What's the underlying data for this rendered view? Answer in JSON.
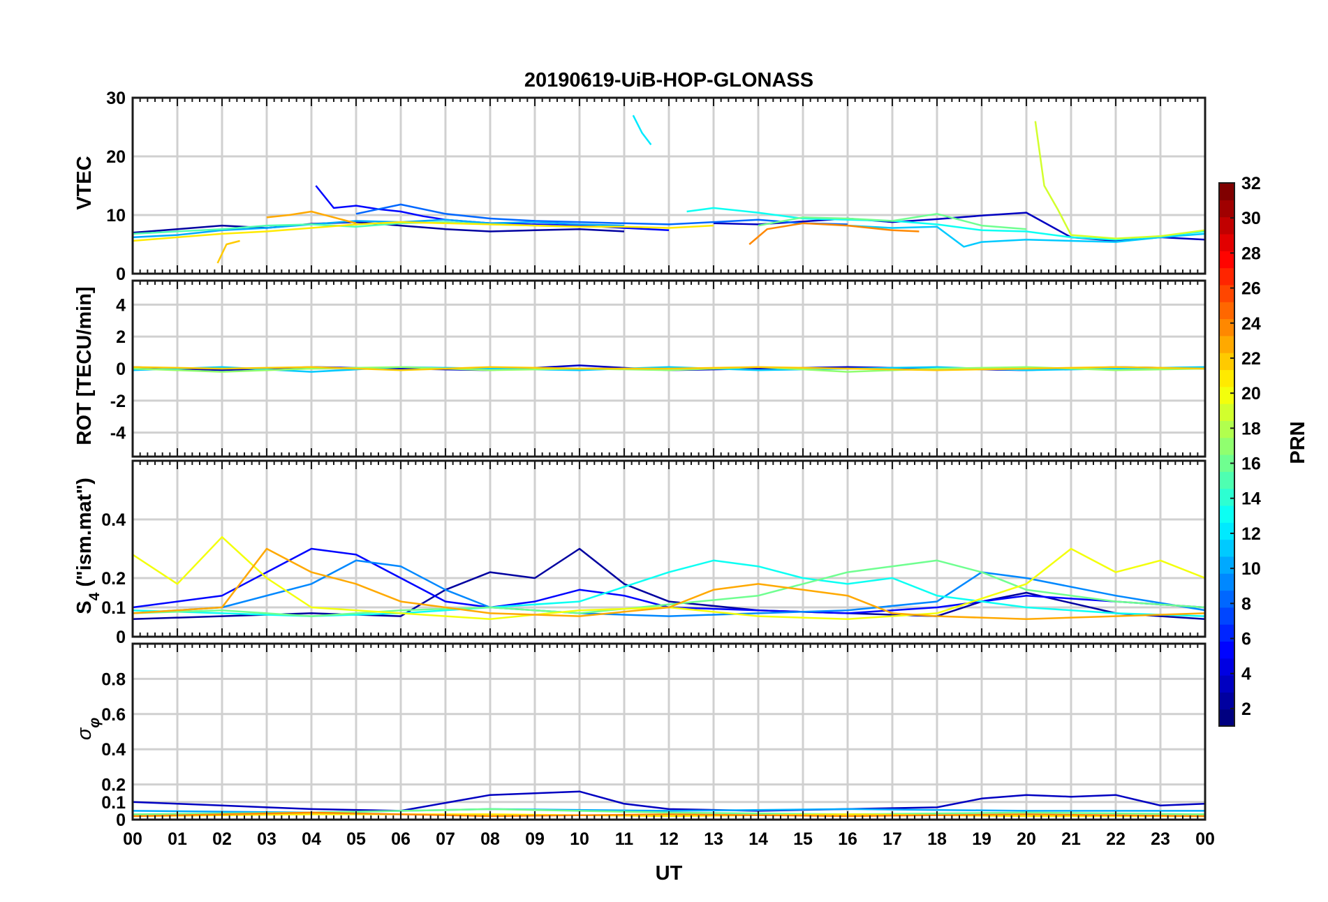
{
  "chart_data": {
    "type": "line",
    "title": "20190619-UiB-HOP-GLONASS",
    "xlabel": "UT",
    "x_range_hours": [
      0,
      24
    ],
    "x_tick_labels": [
      "00",
      "01",
      "02",
      "03",
      "04",
      "05",
      "06",
      "07",
      "08",
      "09",
      "10",
      "11",
      "12",
      "13",
      "14",
      "15",
      "16",
      "17",
      "18",
      "19",
      "20",
      "21",
      "22",
      "23",
      "00"
    ],
    "colorbar": {
      "label": "PRN",
      "range": [
        1,
        32
      ],
      "tick_labels": [
        "2",
        "4",
        "6",
        "8",
        "10",
        "12",
        "14",
        "16",
        "18",
        "20",
        "22",
        "24",
        "26",
        "28",
        "30",
        "32"
      ],
      "colormap": "jet"
    },
    "panels": [
      {
        "name": "vtec",
        "ylabel": "VTEC",
        "ylim": [
          0,
          30
        ],
        "y_ticks": [
          0,
          10,
          20,
          30
        ],
        "y_tick_labels": [
          "0",
          "10",
          "20",
          "30"
        ],
        "series": [
          {
            "prn": 2,
            "x": [
              0,
              1,
              2,
              3,
              4,
              5,
              6,
              7,
              8,
              9,
              10,
              11
            ],
            "y": [
              7.0,
              7.6,
              8.2,
              7.8,
              8.5,
              8.8,
              8.2,
              7.6,
              7.2,
              7.4,
              7.6,
              7.2
            ]
          },
          {
            "prn": 3,
            "x": [
              13,
              14,
              15,
              16,
              17,
              18,
              19,
              20,
              21,
              22,
              23,
              24
            ],
            "y": [
              8.6,
              8.4,
              8.9,
              9.4,
              8.8,
              9.3,
              9.9,
              10.4,
              6.2,
              5.6,
              6.2,
              5.8
            ]
          },
          {
            "prn": 5,
            "x": [
              4.1,
              4.5,
              5,
              5.5,
              6,
              6.5,
              7,
              8,
              9,
              10,
              11,
              12
            ],
            "y": [
              15.0,
              11.2,
              11.6,
              11.0,
              10.6,
              9.8,
              9.2,
              8.6,
              8.4,
              8.2,
              7.8,
              7.4
            ]
          },
          {
            "prn": 8,
            "x": [
              5,
              6,
              7,
              8,
              9,
              10,
              11,
              12,
              13,
              14,
              15,
              16
            ],
            "y": [
              10.2,
              11.8,
              10.2,
              9.4,
              9.0,
              8.8,
              8.6,
              8.4,
              8.8,
              9.2,
              8.6,
              8.4
            ]
          },
          {
            "prn": 10,
            "x": [
              0,
              1,
              2,
              3,
              4,
              5,
              6,
              7,
              8,
              9,
              10,
              11
            ],
            "y": [
              6.2,
              6.6,
              7.4,
              7.8,
              8.4,
              9.0,
              8.8,
              9.2,
              8.6,
              8.8,
              8.4,
              8.2
            ]
          },
          {
            "prn": 11,
            "x": [
              16,
              17,
              18,
              18.6,
              19,
              20,
              21,
              22,
              23,
              24
            ],
            "y": [
              8.2,
              7.8,
              8.0,
              4.6,
              5.4,
              5.8,
              5.6,
              5.4,
              6.2,
              6.8
            ]
          },
          {
            "prn": 12,
            "x": [
              11.2,
              11.4,
              11.6
            ],
            "y": [
              27.0,
              24.0,
              22.0
            ]
          },
          {
            "prn": 13,
            "x": [
              12.4,
              13,
              14,
              15,
              16,
              17,
              18,
              19,
              20,
              21,
              22,
              23,
              24
            ],
            "y": [
              10.6,
              11.2,
              10.4,
              9.4,
              9.2,
              9.0,
              8.4,
              7.4,
              7.2,
              6.2,
              5.8,
              6.4,
              7.2
            ]
          },
          {
            "prn": 15,
            "x": [
              0,
              1,
              2,
              3,
              4,
              5,
              6,
              7,
              8,
              9,
              10
            ],
            "y": [
              6.8,
              7.2,
              7.6,
              8.2,
              8.4,
              8.0,
              8.6,
              8.8,
              8.4,
              8.2,
              8.0
            ]
          },
          {
            "prn": 16,
            "x": [
              14,
              15,
              16,
              17,
              18,
              19,
              20
            ],
            "y": [
              8.2,
              9.6,
              9.4,
              9.0,
              10.2,
              8.2,
              7.6
            ]
          },
          {
            "prn": 19,
            "x": [
              20.2,
              20.4,
              20.7,
              21,
              22,
              23,
              24
            ],
            "y": [
              26.0,
              15.0,
              11.0,
              6.6,
              6.0,
              6.4,
              7.4
            ]
          },
          {
            "prn": 21,
            "x": [
              0,
              1,
              2,
              3,
              4,
              5,
              6,
              7,
              8,
              9,
              10,
              11,
              12,
              13
            ],
            "y": [
              5.6,
              6.2,
              6.8,
              7.2,
              7.8,
              8.4,
              8.8,
              8.6,
              8.4,
              8.2,
              8.0,
              8.0,
              7.8,
              8.2
            ]
          },
          {
            "prn": 22,
            "x": [
              1.9,
              2.1,
              2.4
            ],
            "y": [
              1.8,
              5.0,
              5.6
            ]
          },
          {
            "prn": 23,
            "x": [
              3,
              3.5,
              4,
              4.4,
              5
            ],
            "y": [
              9.6,
              10.0,
              10.6,
              9.8,
              8.6
            ]
          },
          {
            "prn": 24,
            "x": [
              13.8,
              14.2,
              15,
              16,
              17,
              17.6
            ],
            "y": [
              5.0,
              7.6,
              8.6,
              8.2,
              7.4,
              7.2
            ]
          }
        ]
      },
      {
        "name": "rot",
        "ylabel": "ROT [TECU/min]",
        "ylim": [
          -5.5,
          5.5
        ],
        "y_ticks": [
          -4,
          -2,
          0,
          2,
          4
        ],
        "y_tick_labels": [
          "-4",
          "-2",
          "0",
          "2",
          "4"
        ],
        "series": [
          {
            "prn": 3,
            "x": [
              0,
              2,
              4,
              6,
              8,
              10,
              12,
              14,
              16,
              18,
              20,
              22,
              24
            ],
            "y": [
              0.1,
              -0.1,
              0.1,
              0.0,
              -0.1,
              0.2,
              -0.1,
              0.0,
              0.1,
              0.0,
              -0.1,
              0.1,
              0.0
            ]
          },
          {
            "prn": 11,
            "x": [
              0,
              2,
              4,
              6,
              8,
              10,
              12,
              14,
              16,
              18,
              20,
              22,
              24
            ],
            "y": [
              -0.1,
              0.1,
              -0.2,
              0.1,
              0.0,
              -0.1,
              0.1,
              -0.1,
              0.0,
              0.1,
              -0.1,
              0.0,
              0.1
            ]
          },
          {
            "prn": 17,
            "x": [
              0,
              2,
              4,
              6,
              8,
              10,
              12,
              14,
              16,
              18,
              20,
              22,
              24
            ],
            "y": [
              0.0,
              -0.2,
              0.0,
              0.1,
              -0.1,
              0.0,
              -0.1,
              0.1,
              -0.2,
              0.0,
              0.1,
              -0.1,
              0.0
            ]
          },
          {
            "prn": 22,
            "x": [
              0,
              2,
              4,
              6,
              8,
              10,
              12,
              14,
              16,
              18,
              20,
              22,
              24
            ],
            "y": [
              0.1,
              0.0,
              0.1,
              -0.1,
              0.1,
              0.0,
              0.0,
              0.1,
              0.0,
              -0.1,
              0.0,
              0.1,
              0.0
            ]
          }
        ]
      },
      {
        "name": "s4",
        "ylabel": "S4 (\"ism.mat\")",
        "ylabel_main": "S",
        "ylabel_sub": "4",
        "ylabel_rest": " (\"ism.mat\")",
        "ylim": [
          0,
          0.6
        ],
        "y_ticks": [
          0,
          0.1,
          0.2,
          0.4
        ],
        "y_tick_labels": [
          "0",
          "0.1",
          "0.2",
          "0.4"
        ],
        "series": [
          {
            "prn": 2,
            "x": [
              0,
              2,
              4,
              6,
              7,
              8,
              9,
              10,
              11,
              12,
              14,
              16,
              18,
              19,
              20,
              22,
              24
            ],
            "y": [
              0.06,
              0.07,
              0.08,
              0.07,
              0.16,
              0.22,
              0.2,
              0.3,
              0.18,
              0.12,
              0.09,
              0.08,
              0.07,
              0.12,
              0.15,
              0.08,
              0.06
            ]
          },
          {
            "prn": 5,
            "x": [
              0,
              2,
              3,
              4,
              5,
              6,
              7,
              8,
              9,
              10,
              11,
              12,
              14,
              16,
              18,
              20,
              22,
              24
            ],
            "y": [
              0.1,
              0.14,
              0.22,
              0.3,
              0.28,
              0.2,
              0.12,
              0.1,
              0.12,
              0.16,
              0.14,
              0.1,
              0.09,
              0.08,
              0.1,
              0.14,
              0.12,
              0.1
            ]
          },
          {
            "prn": 9,
            "x": [
              0,
              2,
              4,
              5,
              6,
              7,
              8,
              10,
              12,
              14,
              16,
              18,
              19,
              20,
              22,
              24
            ],
            "y": [
              0.08,
              0.1,
              0.18,
              0.26,
              0.24,
              0.16,
              0.1,
              0.08,
              0.07,
              0.08,
              0.09,
              0.12,
              0.22,
              0.2,
              0.14,
              0.09
            ]
          },
          {
            "prn": 13,
            "x": [
              0,
              2,
              4,
              6,
              8,
              10,
              12,
              13,
              14,
              15,
              16,
              17,
              18,
              20,
              22,
              24
            ],
            "y": [
              0.09,
              0.08,
              0.07,
              0.08,
              0.1,
              0.12,
              0.22,
              0.26,
              0.24,
              0.2,
              0.18,
              0.2,
              0.14,
              0.1,
              0.08,
              0.07
            ]
          },
          {
            "prn": 16,
            "x": [
              0,
              2,
              4,
              6,
              8,
              10,
              12,
              14,
              15,
              16,
              17,
              18,
              19,
              20,
              22,
              24
            ],
            "y": [
              0.08,
              0.09,
              0.07,
              0.09,
              0.1,
              0.08,
              0.11,
              0.14,
              0.18,
              0.22,
              0.24,
              0.26,
              0.22,
              0.16,
              0.12,
              0.1
            ]
          },
          {
            "prn": 20,
            "x": [
              0,
              1,
              2,
              3,
              4,
              6,
              8,
              10,
              12,
              14,
              16,
              18,
              20,
              21,
              22,
              23,
              24
            ],
            "y": [
              0.28,
              0.18,
              0.34,
              0.2,
              0.1,
              0.08,
              0.06,
              0.09,
              0.1,
              0.07,
              0.06,
              0.08,
              0.18,
              0.3,
              0.22,
              0.26,
              0.2
            ]
          },
          {
            "prn": 23,
            "x": [
              0,
              2,
              3,
              4,
              5,
              6,
              8,
              10,
              12,
              13,
              14,
              15,
              16,
              17,
              18,
              20,
              22,
              24
            ],
            "y": [
              0.08,
              0.1,
              0.3,
              0.22,
              0.18,
              0.12,
              0.08,
              0.07,
              0.1,
              0.16,
              0.18,
              0.16,
              0.14,
              0.08,
              0.07,
              0.06,
              0.07,
              0.08
            ]
          }
        ]
      },
      {
        "name": "sigma_phi",
        "ylabel": "σφ",
        "ylabel_main": "σ",
        "ylabel_sub": "φ",
        "ylim": [
          0,
          1
        ],
        "y_ticks": [
          0,
          0.1,
          0.2,
          0.4,
          0.6,
          0.8
        ],
        "y_tick_labels": [
          "0",
          "0.1",
          "0.2",
          "0.4",
          "0.6",
          "0.8"
        ],
        "series": [
          {
            "prn": 3,
            "x": [
              0,
              1,
              2,
              3,
              4,
              6,
              8,
              9,
              10,
              11,
              12,
              14,
              16,
              18,
              19,
              20,
              21,
              22,
              23,
              24
            ],
            "y": [
              0.1,
              0.09,
              0.08,
              0.07,
              0.06,
              0.05,
              0.14,
              0.15,
              0.16,
              0.09,
              0.06,
              0.05,
              0.06,
              0.07,
              0.12,
              0.14,
              0.13,
              0.14,
              0.08,
              0.09
            ]
          },
          {
            "prn": 10,
            "x": [
              0,
              4,
              8,
              12,
              16,
              20,
              24
            ],
            "y": [
              0.05,
              0.04,
              0.06,
              0.05,
              0.06,
              0.05,
              0.05
            ]
          },
          {
            "prn": 16,
            "x": [
              0,
              4,
              8,
              12,
              16,
              20,
              24
            ],
            "y": [
              0.03,
              0.04,
              0.06,
              0.04,
              0.03,
              0.04,
              0.03
            ]
          },
          {
            "prn": 21,
            "x": [
              0,
              4,
              8,
              12,
              16,
              20,
              24
            ],
            "y": [
              0.02,
              0.03,
              0.03,
              0.02,
              0.03,
              0.02,
              0.02
            ]
          },
          {
            "prn": 24,
            "x": [
              0,
              4,
              8,
              12,
              16,
              20,
              24
            ],
            "y": [
              0.02,
              0.04,
              0.02,
              0.03,
              0.02,
              0.03,
              0.02
            ]
          }
        ]
      }
    ]
  }
}
